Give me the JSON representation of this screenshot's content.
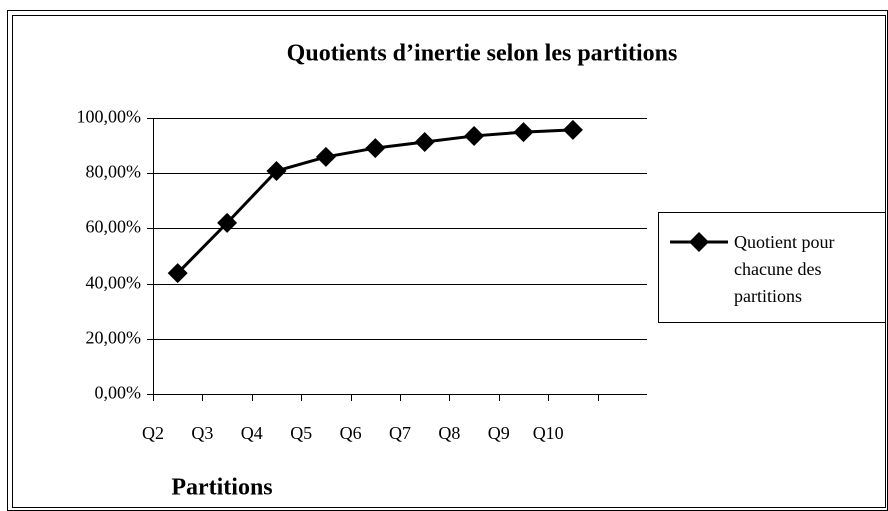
{
  "chart_data": {
    "type": "line",
    "title": "Quotients d’inertie selon les partitions",
    "x_label": "Partitions",
    "categories": [
      "Q2",
      "Q3",
      "Q4",
      "Q5",
      "Q6",
      "Q7",
      "Q8",
      "Q9",
      "Q10"
    ],
    "series": [
      {
        "name": "Quotient pour chacune des partitions",
        "color": "#000000",
        "values": [
          43.8,
          62.0,
          80.8,
          85.9,
          89.1,
          91.3,
          93.5,
          94.9,
          95.7
        ]
      }
    ],
    "ylim": [
      0,
      100
    ],
    "yticks": [
      {
        "value": 0,
        "label": "0,00%"
      },
      {
        "value": 20,
        "label": "20,00%"
      },
      {
        "value": 40,
        "label": "40,00%"
      },
      {
        "value": 60,
        "label": "60,00%"
      },
      {
        "value": 80,
        "label": "80,00%"
      },
      {
        "value": 100,
        "label": "100,00%"
      }
    ],
    "grid": true,
    "legend": "right"
  }
}
